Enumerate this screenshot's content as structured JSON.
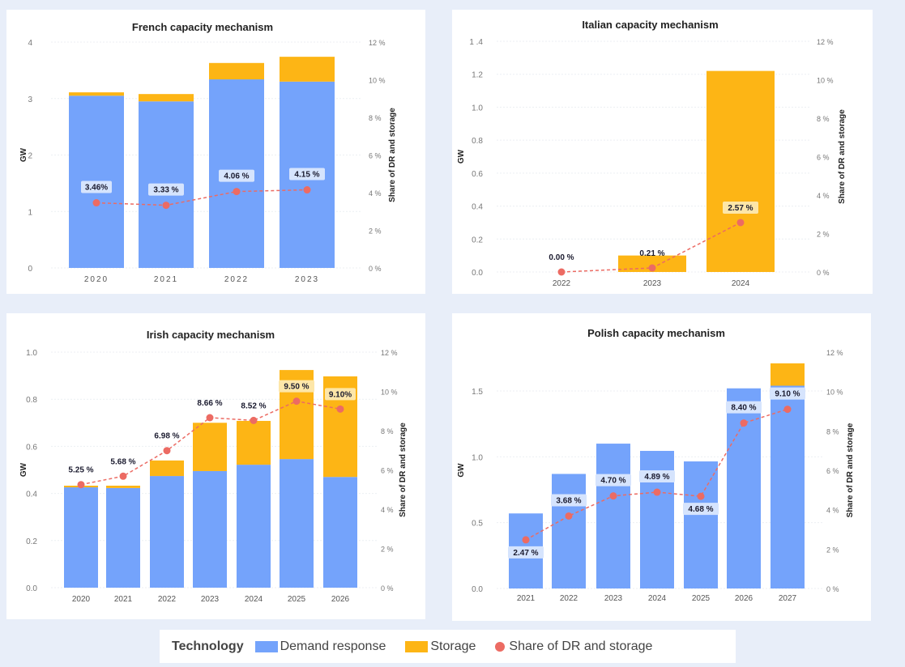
{
  "colors": {
    "demand_response": "#74a3fb",
    "storage": "#fdb515",
    "share": "#ec6b63",
    "label_blue": "#d6e4fd",
    "label_yellow": "#fde6a8"
  },
  "legend": {
    "title": "Technology",
    "items": [
      "Demand response",
      "Storage",
      "Share of DR and storage"
    ]
  },
  "chart_data": [
    {
      "id": "fr",
      "type": "bar",
      "stacked": true,
      "title": "French capacity mechanism",
      "ylabel": "GW",
      "y2label": "Share of DR and storage",
      "ylim": [
        0,
        4
      ],
      "yticks": [
        "0",
        "1",
        "2",
        "3",
        "4"
      ],
      "ytick_values": [
        0,
        1,
        2,
        3,
        4
      ],
      "y2lim": [
        0,
        12
      ],
      "y2ticks": [
        "0 %",
        "2 %",
        "4 %",
        "6 %",
        "8 %",
        "10 %",
        "12 %"
      ],
      "categories": [
        "2020",
        "2021",
        "2022",
        "2023"
      ],
      "series": [
        {
          "name": "Demand response",
          "values": [
            3.05,
            2.95,
            3.34,
            3.3
          ]
        },
        {
          "name": "Storage",
          "values": [
            0.06,
            0.13,
            0.29,
            0.44
          ]
        }
      ],
      "share": {
        "values": [
          3.46,
          3.33,
          4.06,
          4.15
        ],
        "labels": [
          "3.46%",
          "3.33 %",
          "4.06 %",
          "4.15 %"
        ],
        "label_style": [
          "blue",
          "blue",
          "blue",
          "blue"
        ],
        "label_pos": [
          "above",
          "above",
          "above",
          "above"
        ]
      }
    },
    {
      "id": "it",
      "type": "bar",
      "stacked": true,
      "title": "Italian capacity mechanism",
      "ylabel": "GW",
      "y2label": "Share of DR and storage",
      "ylim": [
        0,
        1.4
      ],
      "yticks": [
        "0.0",
        "0.2",
        "0.4",
        "0.6",
        "0.8",
        "1.0",
        "1.2",
        "1 .4"
      ],
      "ytick_values": [
        0,
        0.2,
        0.4,
        0.6,
        0.8,
        1.0,
        1.2,
        1.4
      ],
      "y2lim": [
        0,
        12
      ],
      "y2ticks": [
        "0 %",
        "2 %",
        "4 %",
        "6 %",
        "8 %",
        "10 %",
        "12 %"
      ],
      "categories": [
        "2022",
        "2023",
        "2024"
      ],
      "series": [
        {
          "name": "Demand response",
          "values": [
            0,
            0,
            0
          ]
        },
        {
          "name": "Storage",
          "values": [
            0,
            0.1,
            1.22
          ]
        }
      ],
      "share": {
        "values": [
          0.0,
          0.21,
          2.57
        ],
        "labels": [
          "0.00 %",
          "0.21 %",
          "2.57 %"
        ],
        "label_style": [
          "plain",
          "plain",
          "yellow"
        ],
        "label_pos": [
          "above",
          "above",
          "above"
        ]
      }
    },
    {
      "id": "ie",
      "type": "bar",
      "stacked": true,
      "title": "Irish capacity mechanism",
      "ylabel": "GW",
      "y2label": "Share of DR and storage",
      "ylim": [
        0,
        1.0
      ],
      "yticks": [
        "0.0",
        "0.2",
        "0.4",
        "0.6",
        "0.8",
        "1.0"
      ],
      "ytick_values": [
        0,
        0.2,
        0.4,
        0.6,
        0.8,
        1.0
      ],
      "y2lim": [
        0,
        12
      ],
      "y2ticks": [
        "0 %",
        "2 %",
        "4 %",
        "6 %",
        "8 %",
        "10 %",
        "12 %"
      ],
      "categories": [
        "2020",
        "2021",
        "2022",
        "2023",
        "2024",
        "2025",
        "2026"
      ],
      "series": [
        {
          "name": "Demand response",
          "values": [
            0.426,
            0.423,
            0.474,
            0.495,
            0.522,
            0.546,
            0.47
          ]
        },
        {
          "name": "Storage",
          "values": [
            0.007,
            0.01,
            0.066,
            0.205,
            0.186,
            0.378,
            0.427
          ]
        }
      ],
      "share": {
        "values": [
          5.25,
          5.68,
          6.98,
          8.66,
          8.52,
          9.5,
          9.1
        ],
        "labels": [
          "5.25 %",
          "5.68 %",
          "6.98 %",
          "8.66 %",
          "8.52 %",
          "9.50 %",
          "9.10%"
        ],
        "label_style": [
          "plain",
          "plain",
          "plain",
          "plain",
          "plain",
          "yellow",
          "yellow"
        ],
        "label_pos": [
          "above",
          "above",
          "above",
          "above",
          "above",
          "above",
          "above"
        ]
      }
    },
    {
      "id": "pl",
      "type": "bar",
      "stacked": true,
      "title": "Polish capacity mechanism",
      "ylabel": "GW",
      "y2label": "Share of DR and storage",
      "ylim": [
        0,
        1.5
      ],
      "yticks": [
        "0.0",
        "0.5",
        "1.0",
        "1.5"
      ],
      "ytick_values": [
        0,
        0.5,
        1.0,
        1.5
      ],
      "y2lim": [
        0,
        12
      ],
      "y2ticks": [
        "0 %",
        "2 %",
        "4 %",
        "6 %",
        "8 %",
        "10 %",
        "12 %"
      ],
      "categories": [
        "2021",
        "2022",
        "2023",
        "2024",
        "2025",
        "2026",
        "2027"
      ],
      "series": [
        {
          "name": "Demand response",
          "values": [
            0.57,
            0.87,
            1.1,
            1.045,
            0.965,
            1.52,
            1.54
          ]
        },
        {
          "name": "Storage",
          "values": [
            0,
            0,
            0,
            0,
            0,
            0,
            0.17
          ]
        }
      ],
      "share": {
        "values": [
          2.47,
          3.68,
          4.7,
          4.89,
          4.68,
          8.4,
          9.1
        ],
        "labels": [
          "2.47 %",
          "3.68 %",
          "4.70 %",
          "4.89 %",
          "4.68 %",
          "8.40 %",
          "9.10 %"
        ],
        "label_style": [
          "blue",
          "blue",
          "blue",
          "blue",
          "blue",
          "blue",
          "blue"
        ],
        "label_pos": [
          "below",
          "above",
          "above",
          "above",
          "below",
          "above",
          "above"
        ]
      }
    }
  ]
}
